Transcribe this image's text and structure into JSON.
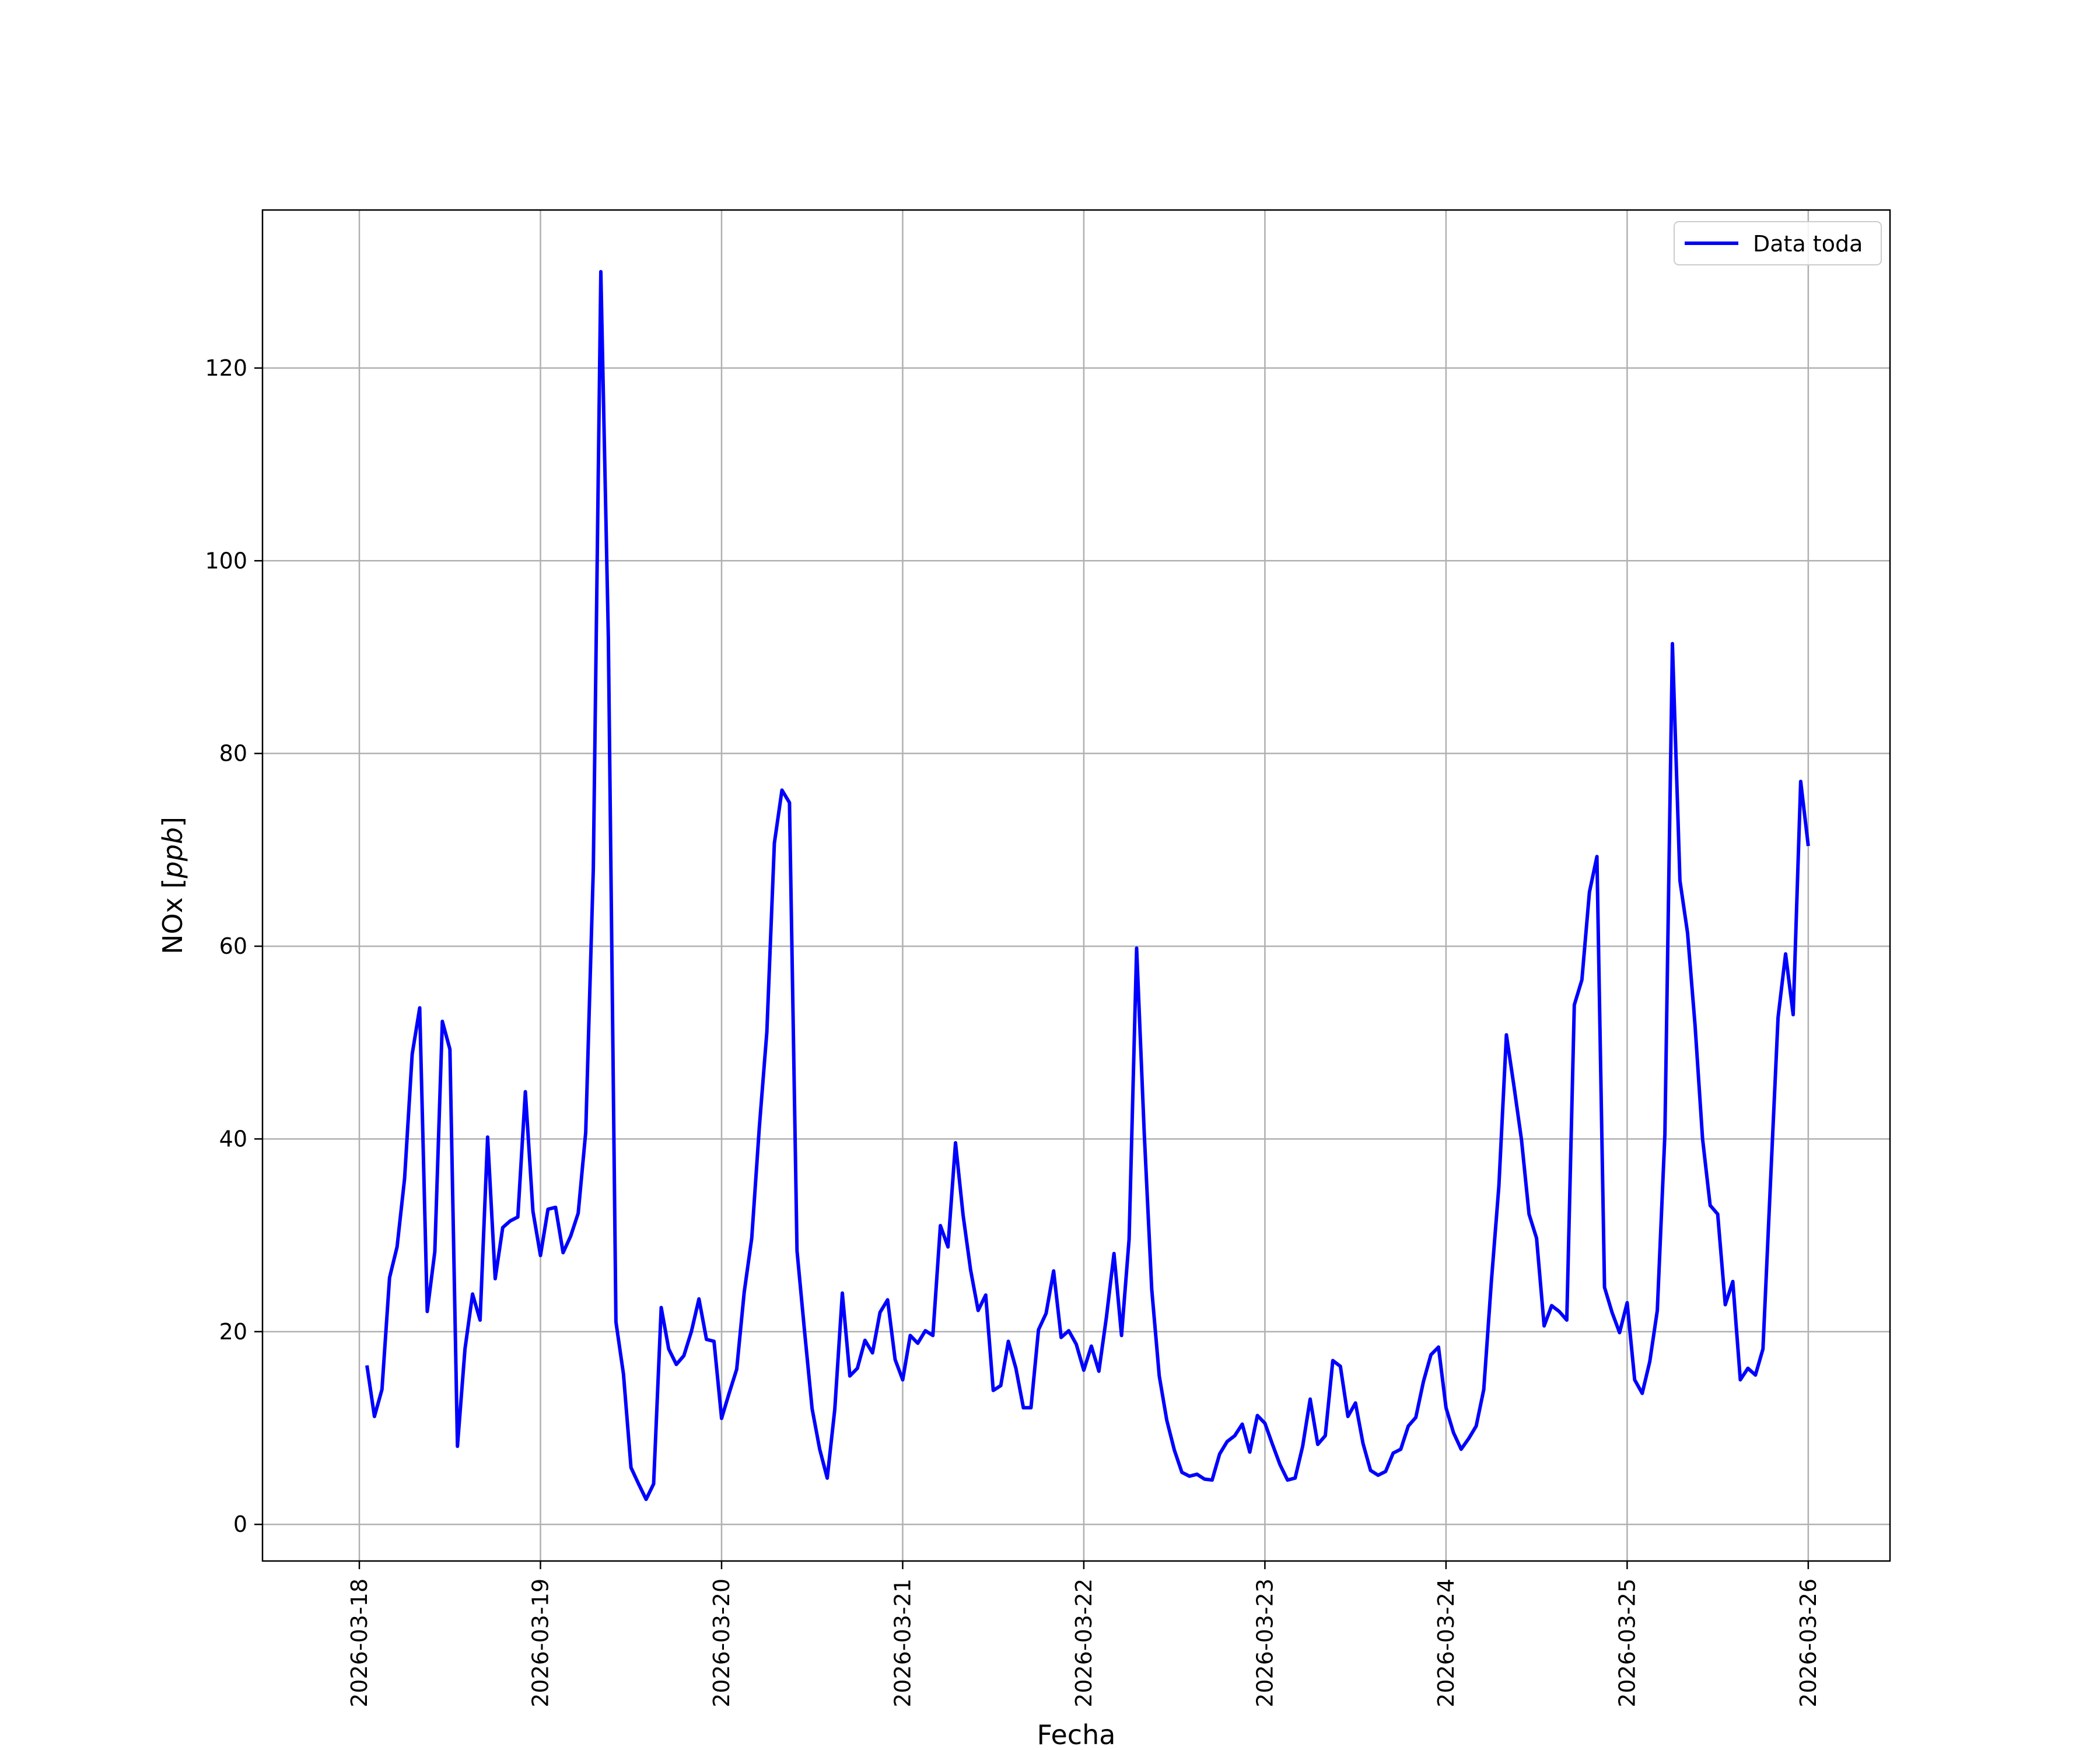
{
  "chart_data": {
    "type": "line",
    "xlabel": "Fecha",
    "ylabel": "NOx [ppb]",
    "ylabel_main": "NOx ",
    "ylabel_unit": "ppb",
    "x_ticks": [
      "2026-03-18",
      "2026-03-19",
      "2026-03-20",
      "2026-03-21",
      "2026-03-22",
      "2026-03-23",
      "2026-03-24",
      "2026-03-25",
      "2026-03-26"
    ],
    "y_ticks": [
      0,
      20,
      40,
      60,
      80,
      100,
      120
    ],
    "xlim": [
      "2026-03-17 11:10",
      "2026-03-26 10:50"
    ],
    "ylim": [
      -3.8,
      136.4
    ],
    "grid": true,
    "legend_position": "top-right",
    "series": [
      {
        "name": "Data toda",
        "color": "#0000ff",
        "start": "2026-03-18 01:00",
        "step_hours": 1,
        "values": [
          16.5,
          11.2,
          14.0,
          25.6,
          28.8,
          35.9,
          48.8,
          53.6,
          22.1,
          28.3,
          52.2,
          49.3,
          8.1,
          18.2,
          23.9,
          21.2,
          40.2,
          25.5,
          30.8,
          31.5,
          31.9,
          44.9,
          32.5,
          27.9,
          32.7,
          32.9,
          28.2,
          29.9,
          32.3,
          40.7,
          68.0,
          130.0,
          92.0,
          21.0,
          15.6,
          5.9,
          4.2,
          2.6,
          4.2,
          22.5,
          18.2,
          16.6,
          17.5,
          20.0,
          23.4,
          19.2,
          19.0,
          11.0,
          13.6,
          16.1,
          24.1,
          29.7,
          41.2,
          51.1,
          70.7,
          76.2,
          74.9,
          28.4,
          20.0,
          12.0,
          7.8,
          4.8,
          11.9,
          24.0,
          15.4,
          16.2,
          19.1,
          17.8,
          22.0,
          23.3,
          17.1,
          15.0,
          19.6,
          18.8,
          20.1,
          19.6,
          31.0,
          28.8,
          39.6,
          32.1,
          26.4,
          22.2,
          23.8,
          13.9,
          14.4,
          19.0,
          16.2,
          12.1,
          12.1,
          20.2,
          21.9,
          26.3,
          19.4,
          20.1,
          18.7,
          16.0,
          18.5,
          15.9,
          21.5,
          28.1,
          19.6,
          29.6,
          59.8,
          40.8,
          24.4,
          15.4,
          10.8,
          7.7,
          5.4,
          5.0,
          5.2,
          4.7,
          4.6,
          7.3,
          8.6,
          9.2,
          10.4,
          7.5,
          11.3,
          10.5,
          8.3,
          6.2,
          4.6,
          4.8,
          8.1,
          13.0,
          8.3,
          9.2,
          17.0,
          16.4,
          11.2,
          12.6,
          8.4,
          5.6,
          5.1,
          5.5,
          7.4,
          7.8,
          10.2,
          11.1,
          14.8,
          17.6,
          18.4,
          12.1,
          9.5,
          7.8,
          8.9,
          10.2,
          14.0,
          25.1,
          35.1,
          50.8,
          45.5,
          39.9,
          32.2,
          29.7,
          20.6,
          22.7,
          22.1,
          21.2,
          53.9,
          56.5,
          65.6,
          69.3,
          24.6,
          22.0,
          19.9,
          23.0,
          15.0,
          13.6,
          16.9,
          22.2,
          40.5,
          91.4,
          66.8,
          61.4,
          51.8,
          40.0,
          33.1,
          32.2,
          22.8,
          25.2,
          15.0,
          16.2,
          15.5,
          18.2,
          35.6,
          52.6,
          59.2,
          52.9,
          77.1,
          70.4
        ]
      }
    ]
  }
}
